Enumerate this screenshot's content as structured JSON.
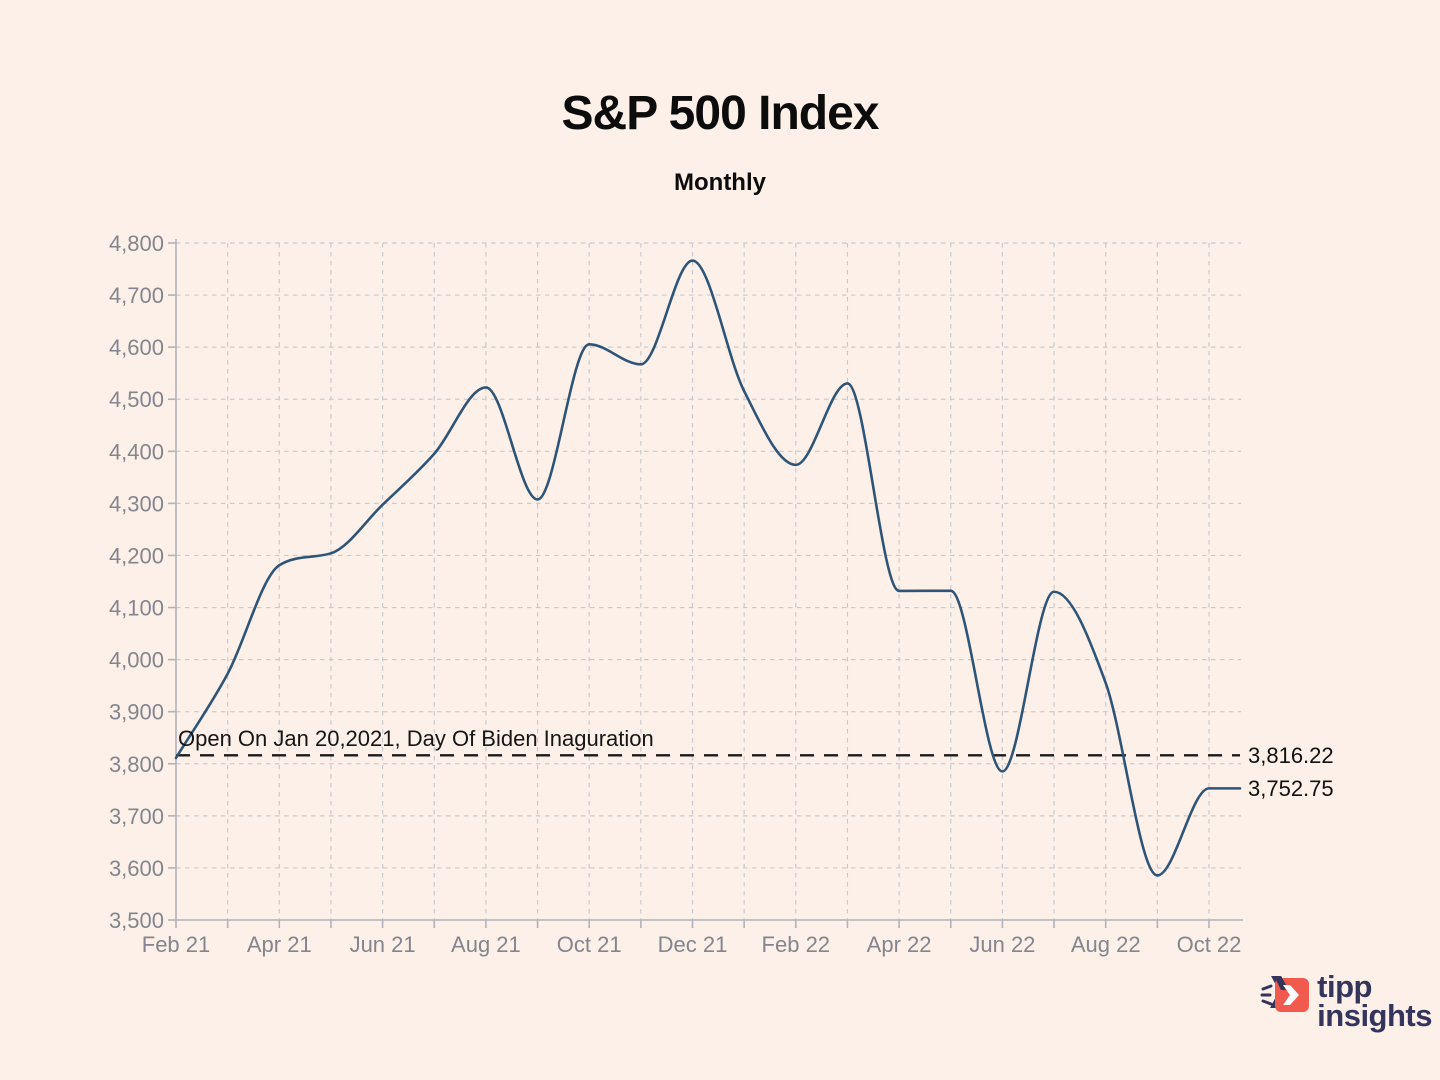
{
  "chart_data": {
    "type": "line",
    "title": "S&P 500 Index",
    "subtitle": "Monthly",
    "series_name": "S&P 500 Index monthly close",
    "categories": [
      "Feb 21",
      "Mar 21",
      "Apr 21",
      "May 21",
      "Jun 21",
      "Jul 21",
      "Aug 21",
      "Sep 21",
      "Oct 21",
      "Nov 21",
      "Dec 21",
      "Jan 22",
      "Feb 22",
      "Mar 22",
      "Apr 22",
      "May 22",
      "Jun 22",
      "Jul 22",
      "Aug 22",
      "Sep 22",
      "Oct 22"
    ],
    "values": [
      3811.15,
      3972.89,
      4181.17,
      4204.11,
      4297.5,
      4395.26,
      4522.68,
      4307.54,
      4605.38,
      4567.0,
      4766.18,
      4515.55,
      4373.94,
      4530.41,
      4131.93,
      4132.15,
      3785.38,
      4130.29,
      3955.0,
      3585.62,
      3752.75
    ],
    "ylim": [
      3500,
      4800
    ],
    "y_tick_step": 100,
    "x_tick_label_every": 2,
    "grid": "dashed, vertical every month, horizontal every 100 pts",
    "legend": "none",
    "line_color": "#2e5577",
    "line_extends_flat_to_right_edge": true,
    "annotation_line": {
      "value": 3816.22,
      "label": "3,816.22",
      "text": "Open On Jan 20,2021, Day Of Biden Inaguration",
      "style": "dashed",
      "color": "#1b1b1b"
    },
    "last_value_label": "3,752.75",
    "colors": {
      "background": "#fdf0e8",
      "grid": "#c9cad1",
      "axis": "#b2b3ba",
      "tick_text": "#84858e",
      "annotation_text": "#161616"
    }
  },
  "logo": {
    "line1": "tipp",
    "line2": "insights",
    "text_color": "#33355c",
    "icon_color": "#f15b4d",
    "icon_name": "tipp-insights-arrow-icon"
  }
}
